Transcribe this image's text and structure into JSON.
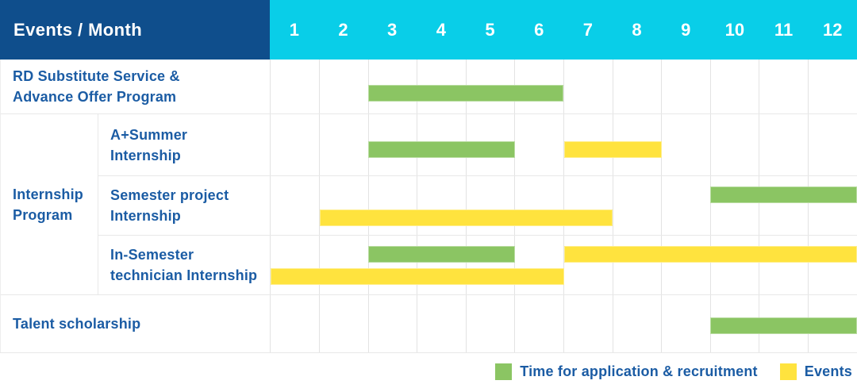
{
  "header": {
    "title": "Events / Month"
  },
  "colors": {
    "navy": "#0F4E8C",
    "cyan": "#09CEE8",
    "green": "#8BC563",
    "yellow": "#FFE33E",
    "label_text": "#1B5CA4",
    "grid_line": "#e3e3e3",
    "row_line": "#e8e8e8"
  },
  "legend": {
    "items": [
      {
        "label": "Time for application & recruitment",
        "kind": "application",
        "color": "#8BC563"
      },
      {
        "label": "Events",
        "kind": "event",
        "color": "#FFE33E"
      }
    ]
  },
  "chart_data": {
    "type": "gantt",
    "title": "Events / Month",
    "x_unit": "month",
    "x_domain": [
      1,
      12
    ],
    "months": [
      "1",
      "2",
      "3",
      "4",
      "5",
      "6",
      "7",
      "8",
      "9",
      "10",
      "11",
      "12"
    ],
    "grid": true,
    "legend_position": "bottom-right",
    "legend": [
      "Time for application & recruitment",
      "Events"
    ],
    "bar_kinds": {
      "application": {
        "legend": "Time for application & recruitment",
        "color": "#8BC563"
      },
      "event": {
        "legend": "Events",
        "color": "#FFE33E"
      }
    },
    "groups": [
      {
        "name": "Internship Program",
        "label_lines": [
          "Internship",
          "Program"
        ]
      }
    ],
    "tasks": [
      {
        "id": "rd-substitute-service-advance-offer-program",
        "label_lines": [
          "RD Substitute Service &",
          "Advance Offer Program"
        ],
        "group": null,
        "lanes": [
          [
            {
              "kind": "application",
              "start": 3,
              "end": 6
            }
          ]
        ]
      },
      {
        "id": "a-plus-summer-internship",
        "label_lines": [
          "A+Summer",
          "Internship"
        ],
        "group": "Internship Program",
        "lanes": [
          [
            {
              "kind": "application",
              "start": 3,
              "end": 5
            },
            {
              "kind": "event",
              "start": 7,
              "end": 8
            }
          ]
        ]
      },
      {
        "id": "semester-project-internship",
        "label_lines": [
          "Semester project",
          "Internship"
        ],
        "group": "Internship Program",
        "lanes": [
          [
            {
              "kind": "application",
              "start": 10,
              "end": 12
            }
          ],
          [
            {
              "kind": "event",
              "start": 2,
              "end": 7
            }
          ]
        ]
      },
      {
        "id": "in-semester-technician-internship",
        "label_lines": [
          "In-Semester",
          "technician Internship"
        ],
        "group": "Internship Program",
        "lanes": [
          [
            {
              "kind": "application",
              "start": 3,
              "end": 5
            },
            {
              "kind": "event",
              "start": 7,
              "end": 12
            }
          ],
          [
            {
              "kind": "event",
              "start": 1,
              "end": 6
            }
          ]
        ]
      },
      {
        "id": "talent-scholarship",
        "label_lines": [
          "Talent scholarship"
        ],
        "group": null,
        "lanes": [
          [
            {
              "kind": "application",
              "start": 10,
              "end": 12
            }
          ]
        ]
      }
    ]
  }
}
